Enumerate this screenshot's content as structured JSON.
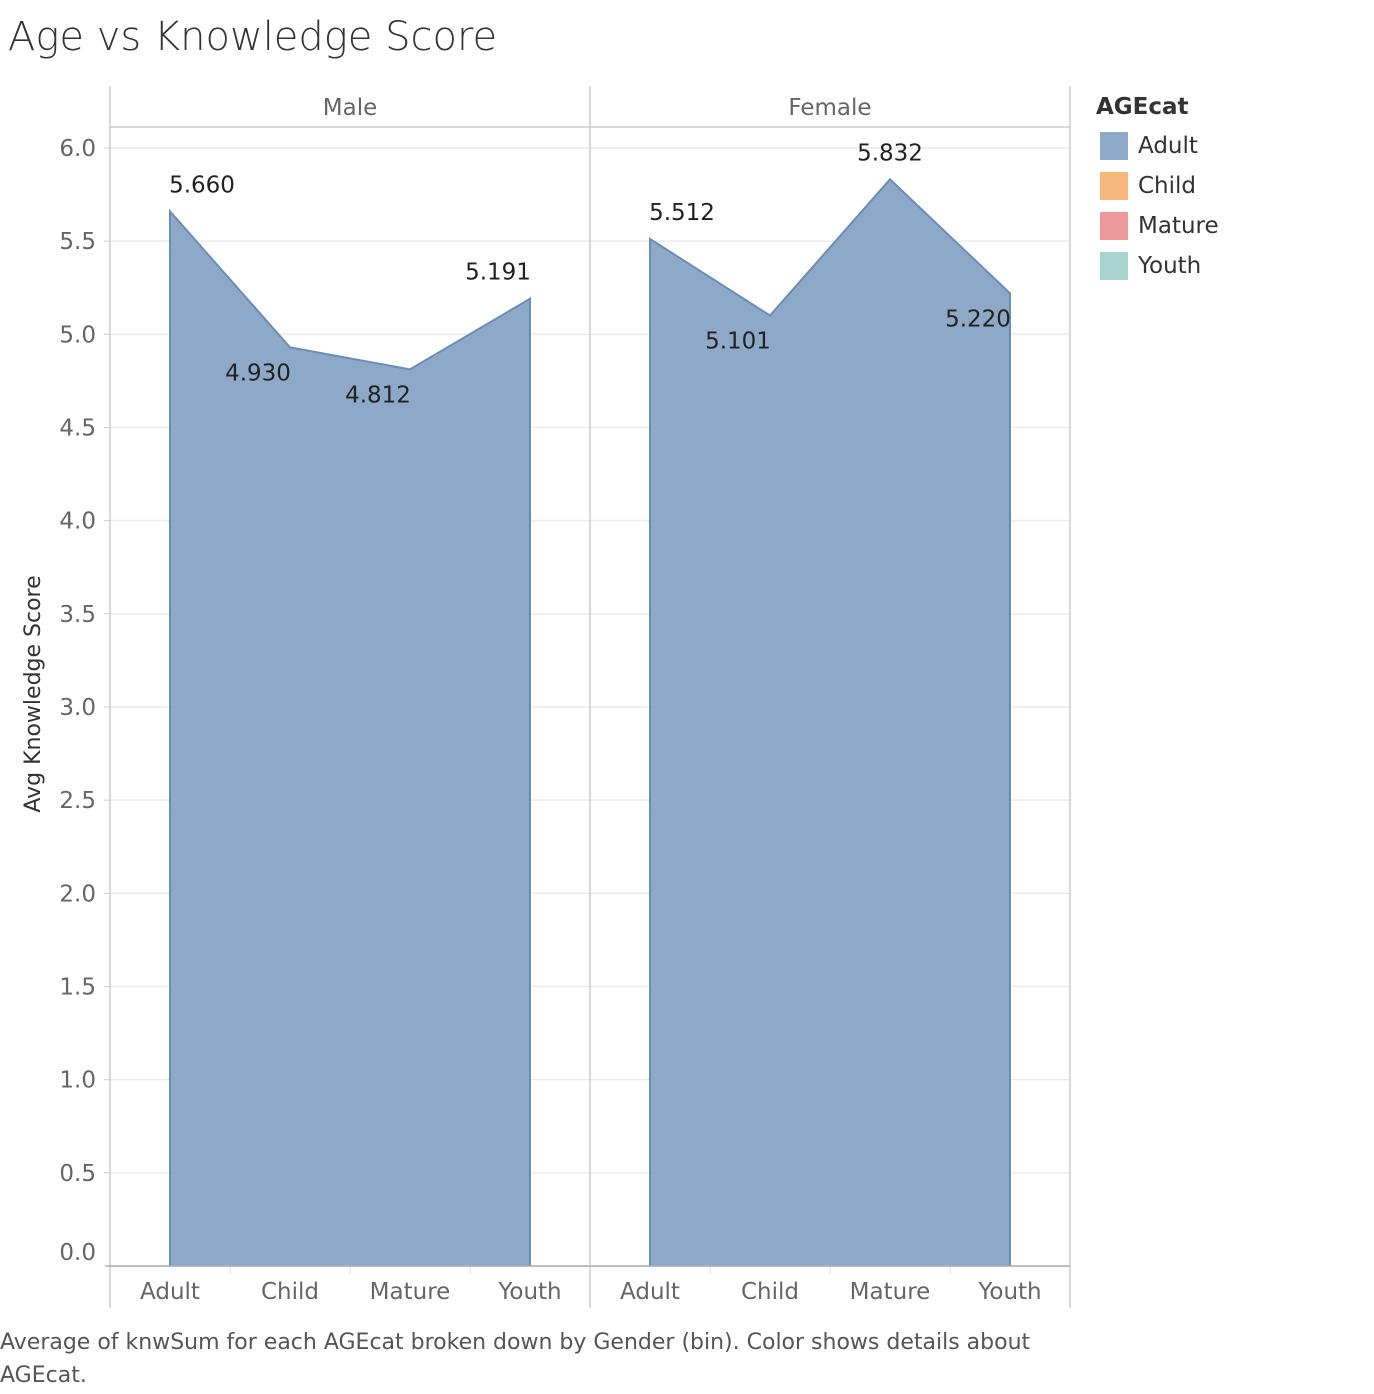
{
  "title": "Age vs Knowledge Score",
  "caption": "Average of knwSum for each AGEcat broken down by Gender (bin).  Color shows details about AGEcat.",
  "legend": {
    "title": "AGEcat",
    "items": [
      {
        "label": "Adult",
        "color": "#8ea9c8"
      },
      {
        "label": "Child",
        "color": "#f5b77c"
      },
      {
        "label": "Mature",
        "color": "#ef9a9a"
      },
      {
        "label": "Youth",
        "color": "#a8d3cf"
      }
    ]
  },
  "chart_data": {
    "type": "area",
    "ylabel": "Avg Knowledge Score",
    "ylim": [
      0,
      6.0
    ],
    "yticks": [
      "0.0",
      "0.5",
      "1.0",
      "1.5",
      "2.0",
      "2.5",
      "3.0",
      "3.5",
      "4.0",
      "4.5",
      "5.0",
      "5.5",
      "6.0"
    ],
    "categories": [
      "Adult",
      "Child",
      "Mature",
      "Youth"
    ],
    "fill_color": "#8ea9c8",
    "line_color": "#6b8db5",
    "grid": true,
    "legend_position": "right",
    "panels": [
      {
        "name": "Male",
        "values": [
          5.66,
          4.93,
          4.812,
          5.191
        ],
        "labels": [
          "5.660",
          "4.930",
          "4.812",
          "5.191"
        ],
        "label_pos": [
          "above",
          "below",
          "below",
          "above"
        ]
      },
      {
        "name": "Female",
        "values": [
          5.512,
          5.101,
          5.832,
          5.22
        ],
        "labels": [
          "5.512",
          "5.101",
          "5.832",
          "5.220"
        ],
        "label_pos": [
          "above",
          "below",
          "above",
          "below"
        ]
      }
    ]
  }
}
